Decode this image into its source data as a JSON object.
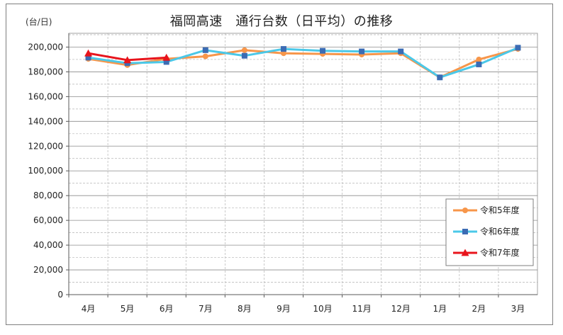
{
  "unit_label": "(台/日)",
  "chart_data": {
    "type": "line",
    "title": "福岡高速　通行台数（日平均）の推移",
    "xlabel": "",
    "ylabel": "(台/日)",
    "categories": [
      "4月",
      "5月",
      "6月",
      "7月",
      "8月",
      "9月",
      "10月",
      "11月",
      "12月",
      "1月",
      "2月",
      "3月"
    ],
    "ylim": [
      0,
      210000
    ],
    "yticks": [
      0,
      20000,
      40000,
      60000,
      80000,
      100000,
      120000,
      140000,
      160000,
      180000,
      200000
    ],
    "ytick_labels": [
      "0",
      "20,000",
      "40,000",
      "60,000",
      "80,000",
      "100,000",
      "120,000",
      "140,000",
      "160,000",
      "180,000",
      "200,000"
    ],
    "grid": true,
    "legend_position": "bottom-right",
    "series": [
      {
        "name": "令和5年度",
        "color": "#f7964a",
        "marker": "circle",
        "values": [
          190500,
          185500,
          190500,
          192500,
          197500,
          195000,
          194500,
          194000,
          195000,
          175500,
          190000,
          198500
        ]
      },
      {
        "name": "令和6年度",
        "color": "#4bc8e8",
        "marker": "square",
        "values": [
          191500,
          187000,
          188000,
          197500,
          193000,
          198500,
          197000,
          196500,
          196500,
          175500,
          186000,
          199500
        ]
      },
      {
        "name": "令和7年度",
        "color": "#e8141c",
        "marker": "triangle",
        "values": [
          195000,
          189500,
          191500,
          null,
          null,
          null,
          null,
          null,
          null,
          null,
          null,
          null
        ]
      }
    ]
  }
}
